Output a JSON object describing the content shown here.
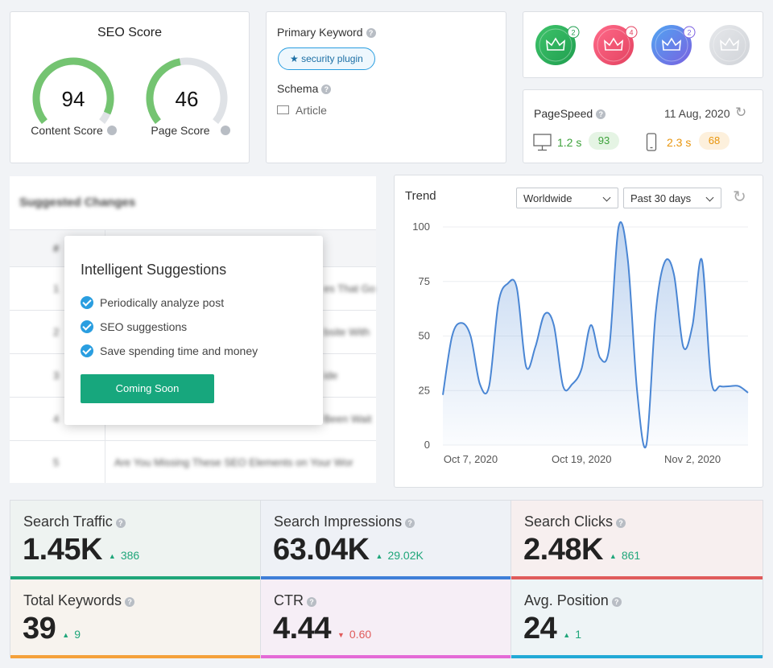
{
  "seo_score": {
    "title": "SEO Score",
    "range": [
      0,
      100
    ],
    "color": "#74c471",
    "track": "#dfe2e6",
    "scores": [
      {
        "label": "Content Score",
        "value": 94
      },
      {
        "label": "Page Score",
        "value": 46
      }
    ]
  },
  "keyword": {
    "title": "Primary Keyword",
    "tag": "security plugin",
    "schema_title": "Schema",
    "schema": "Article"
  },
  "badges": {
    "counts": [
      2,
      4,
      2
    ]
  },
  "pagespeed": {
    "title": "PageSpeed",
    "date": "11 Aug, 2020",
    "desktop": {
      "time": "1.2 s",
      "score": 93
    },
    "mobile": {
      "time": "2.3 s",
      "score": 68
    }
  },
  "suggested": {
    "title": "Suggested Changes",
    "header": "#",
    "rows": [
      {
        "num": 1,
        "text": "es That Go"
      },
      {
        "num": 2,
        "text": "bsite With"
      },
      {
        "num": 3,
        "text": "ide"
      },
      {
        "num": 4,
        "text": "Been Wait"
      },
      {
        "num": 5,
        "text": "Are You Missing These SEO Elements on Your Wor"
      }
    ]
  },
  "popup": {
    "title": "Intelligent Suggestions",
    "items": [
      "Periodically analyze post",
      "SEO suggestions",
      "Save spending time and money"
    ],
    "button": "Coming Soon"
  },
  "trend": {
    "type": "line",
    "title": "Trend",
    "filters": [
      "Worldwide",
      "Past 30 days"
    ],
    "categories": [
      null,
      null,
      null,
      "Oct 7, 2020",
      null,
      null,
      null,
      null,
      null,
      null,
      null,
      null,
      null,
      null,
      null,
      "Oct 19, 2020",
      null,
      null,
      null,
      null,
      null,
      null,
      null,
      null,
      null,
      null,
      null,
      "Nov 2, 2020",
      null,
      null,
      null,
      null,
      null,
      null
    ],
    "values": [
      23,
      50,
      56,
      50,
      28,
      27,
      65,
      74,
      72,
      36,
      45,
      60,
      55,
      27,
      28,
      35,
      55,
      40,
      45,
      100,
      85,
      25,
      0,
      60,
      84,
      78,
      45,
      55,
      85,
      30,
      27,
      27,
      27,
      24
    ],
    "color": "#4a86d4",
    "ylim": [
      0,
      100
    ],
    "yticks": [
      0,
      25,
      50,
      75,
      100
    ],
    "grid": true
  },
  "stats": [
    {
      "label": "Search Traffic",
      "value": "1.45K",
      "change": "386",
      "direction": "up",
      "color": "#1fa67a",
      "bg": "#eef3f1"
    },
    {
      "label": "Search Impressions",
      "value": "63.04K",
      "change": "29.02K",
      "direction": "up",
      "color": "#3f7fd8",
      "bg": "#eef1f6"
    },
    {
      "label": "Search Clicks",
      "value": "2.48K",
      "change": "861",
      "direction": "up",
      "color": "#e05b5b",
      "bg": "#f7efef"
    },
    {
      "label": "Total Keywords",
      "value": "39",
      "change": "9",
      "direction": "up",
      "color": "#f5a13a",
      "bg": "#f7f3ee"
    },
    {
      "label": "CTR",
      "value": "4.44",
      "change": "0.60",
      "direction": "down",
      "color": "#e46ad6",
      "bg": "#f6eef6"
    },
    {
      "label": "Avg. Position",
      "value": "24",
      "change": "1",
      "direction": "up",
      "color": "#22a9d6",
      "bg": "#eef4f6"
    }
  ]
}
